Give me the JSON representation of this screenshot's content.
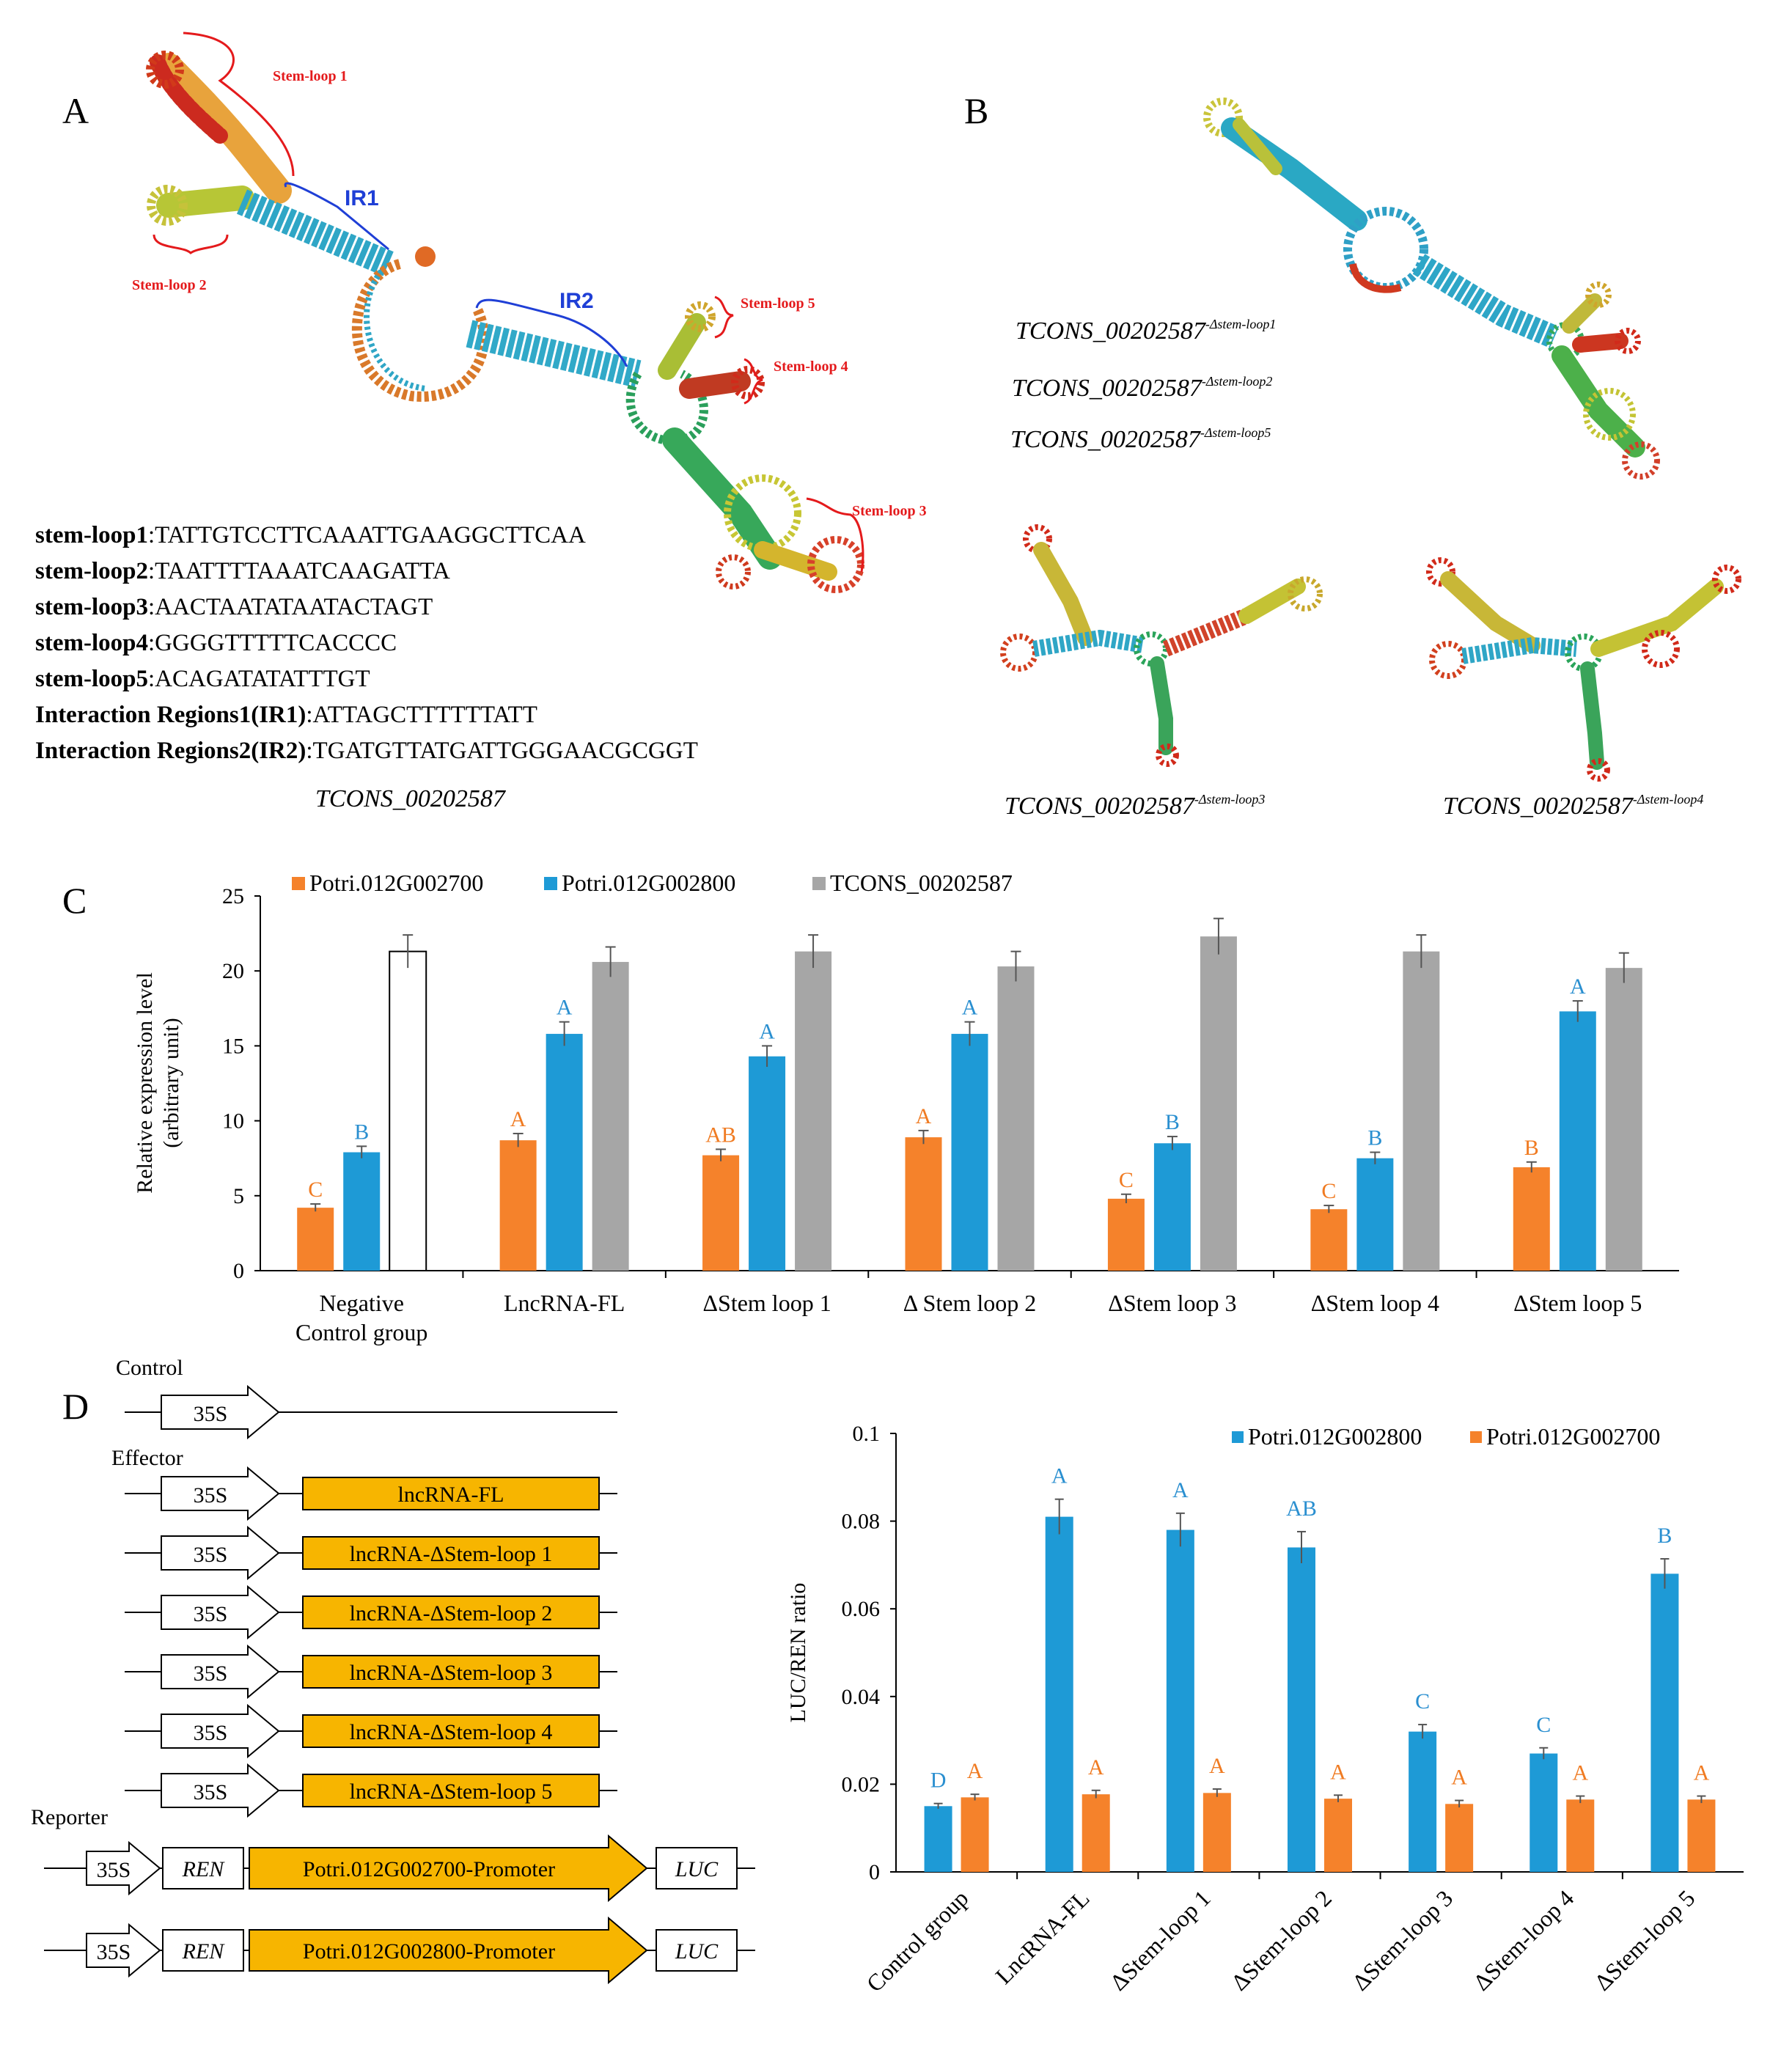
{
  "panels": {
    "a": "A",
    "b": "B",
    "c": "C",
    "d": "D"
  },
  "panel_a": {
    "stem_tags": [
      "Stem-loop 1",
      "Stem-loop 2",
      "Stem-loop 5",
      "Stem-loop 4",
      "Stem-loop 3"
    ],
    "ir_tags": [
      "IR1",
      "IR2"
    ],
    "sequences": [
      {
        "key": "stem-loop1",
        "seq": ":TATTGTCCTTCAAATTGAAGGCTTCAA"
      },
      {
        "key": "stem-loop2",
        "seq": ":TAATTTTAAATCAAGATTA"
      },
      {
        "key": "stem-loop3",
        "seq": ":AACTAATATAATACTAGT"
      },
      {
        "key": "stem-loop4",
        "seq": ":GGGGTTTTTCACCCC"
      },
      {
        "key": "stem-loop5",
        "seq": ":ACAGATATATTTGT"
      },
      {
        "key": "Interaction Regions1(IR1)",
        "seq": ":ATTAGCTTTTTTATT"
      },
      {
        "key": "Interaction Regions2(IR2)",
        "seq": ":TGATGTTATGATTGGGAACGCGGT"
      }
    ],
    "caption": "TCONS_00202587"
  },
  "panel_b": {
    "captions": [
      {
        "base": "TCONS_00202587",
        "sup": "-Δstem-loop1"
      },
      {
        "base": "TCONS_00202587",
        "sup": "-Δstem-loop2"
      },
      {
        "base": "TCONS_00202587",
        "sup": "-Δstem-loop5"
      },
      {
        "base": "TCONS_00202587",
        "sup": "-Δstem-loop3"
      },
      {
        "base": "TCONS_00202587",
        "sup": "-Δstem-loop4"
      }
    ]
  },
  "colors": {
    "orange": "#f5822b",
    "blue": "#1e9ad6",
    "gray": "#a6a6a6",
    "sig_blue": "#2a8fd0",
    "sig_orange": "#f07b22",
    "construct_yellow": "#f7b500",
    "red_tag": "#e41a1c",
    "blue_tag": "#1f3fd6"
  },
  "chart_data": [
    {
      "type": "bar",
      "panel": "C",
      "ylabel": "Relative expression level (arbitrary unit)",
      "ylabel_lines": [
        "Relative expression level",
        "(arbitrary unit)"
      ],
      "ylim": [
        0,
        25
      ],
      "yticks": [
        "0",
        "5",
        "10",
        "15",
        "20",
        "25"
      ],
      "grid": false,
      "legend_position": "top",
      "categories": [
        "Negative Control group",
        "LncRNA-FL",
        "ΔStem loop 1",
        "Δ Stem loop 2",
        "ΔStem loop 3",
        "ΔStem loop 4",
        "ΔStem loop 5"
      ],
      "category_lines": [
        [
          "Negative",
          "Control group"
        ],
        [
          "LncRNA-FL"
        ],
        [
          "ΔStem loop 1"
        ],
        [
          "Δ Stem loop 2"
        ],
        [
          "ΔStem loop 3"
        ],
        [
          "ΔStem loop 4"
        ],
        [
          "ΔStem loop 5"
        ]
      ],
      "series": [
        {
          "name": "Potri.012G002700",
          "color": "#f5822b",
          "values": [
            4.2,
            8.7,
            7.7,
            8.9,
            4.8,
            4.1,
            6.9
          ],
          "errors": [
            0.25,
            0.45,
            0.4,
            0.45,
            0.3,
            0.25,
            0.35
          ],
          "labels": [
            "C",
            "A",
            "AB",
            "A",
            "C",
            "C",
            "B"
          ]
        },
        {
          "name": "Potri.012G002800",
          "color": "#1e9ad6",
          "values": [
            7.9,
            15.8,
            14.3,
            15.8,
            8.5,
            7.5,
            17.3
          ],
          "errors": [
            0.4,
            0.8,
            0.7,
            0.8,
            0.45,
            0.4,
            0.7
          ],
          "labels": [
            "B",
            "A",
            "A",
            "A",
            "B",
            "B",
            "A"
          ]
        },
        {
          "name": "TCONS_00202587",
          "color": "#a6a6a6",
          "values": [
            21.3,
            20.6,
            21.3,
            20.3,
            22.3,
            21.3,
            20.2
          ],
          "errors": [
            1.1,
            1.0,
            1.1,
            1.0,
            1.2,
            1.1,
            1.0
          ],
          "labels": [
            "",
            "",
            "",
            "",
            "",
            "",
            ""
          ],
          "first_hollow": true
        }
      ]
    },
    {
      "type": "bar",
      "panel": "D",
      "ylabel": "LUC/REN ratio",
      "ylim": [
        0,
        0.1
      ],
      "yticks": [
        "0",
        "0.02",
        "0.04",
        "0.06",
        "0.08",
        "0.1"
      ],
      "grid": false,
      "legend_position": "top-right",
      "categories": [
        "Control group",
        "LncRNA-FL",
        "ΔStem-loop 1",
        "ΔStem-loop 2",
        "ΔStem-loop 3",
        "ΔStem-loop 4",
        "ΔStem-loop 5"
      ],
      "series": [
        {
          "name": "Potri.012G002800",
          "color": "#1e9ad6",
          "values": [
            0.015,
            0.081,
            0.078,
            0.074,
            0.032,
            0.027,
            0.068
          ],
          "errors": [
            0.0006,
            0.004,
            0.0038,
            0.0036,
            0.0016,
            0.0013,
            0.0034
          ],
          "labels": [
            "D",
            "A",
            "A",
            "AB",
            "C",
            "C",
            "B"
          ]
        },
        {
          "name": "Potri.012G002700",
          "color": "#f5822b",
          "values": [
            0.017,
            0.0177,
            0.018,
            0.0167,
            0.0155,
            0.0165,
            0.0165
          ],
          "errors": [
            0.0007,
            0.0009,
            0.0009,
            0.0008,
            0.0008,
            0.0008,
            0.0008
          ],
          "labels": [
            "A",
            "A",
            "A",
            "A",
            "A",
            "A",
            "A"
          ]
        }
      ]
    }
  ],
  "constructs": {
    "control_label": "Control",
    "effector_label": "Effector",
    "reporter_label": "Reporter",
    "promoter": "35S",
    "effectors": [
      "lncRNA-FL",
      "lncRNA-ΔStem-loop 1",
      "lncRNA-ΔStem-loop 2",
      "lncRNA-ΔStem-loop 3",
      "lncRNA-ΔStem-loop 4",
      "lncRNA-ΔStem-loop 5"
    ],
    "reporters": [
      {
        "ren": "REN",
        "promoter": "Potri.012G002700-Promoter",
        "luc": "LUC"
      },
      {
        "ren": "REN",
        "promoter": "Potri.012G002800-Promoter",
        "luc": "LUC"
      }
    ]
  }
}
